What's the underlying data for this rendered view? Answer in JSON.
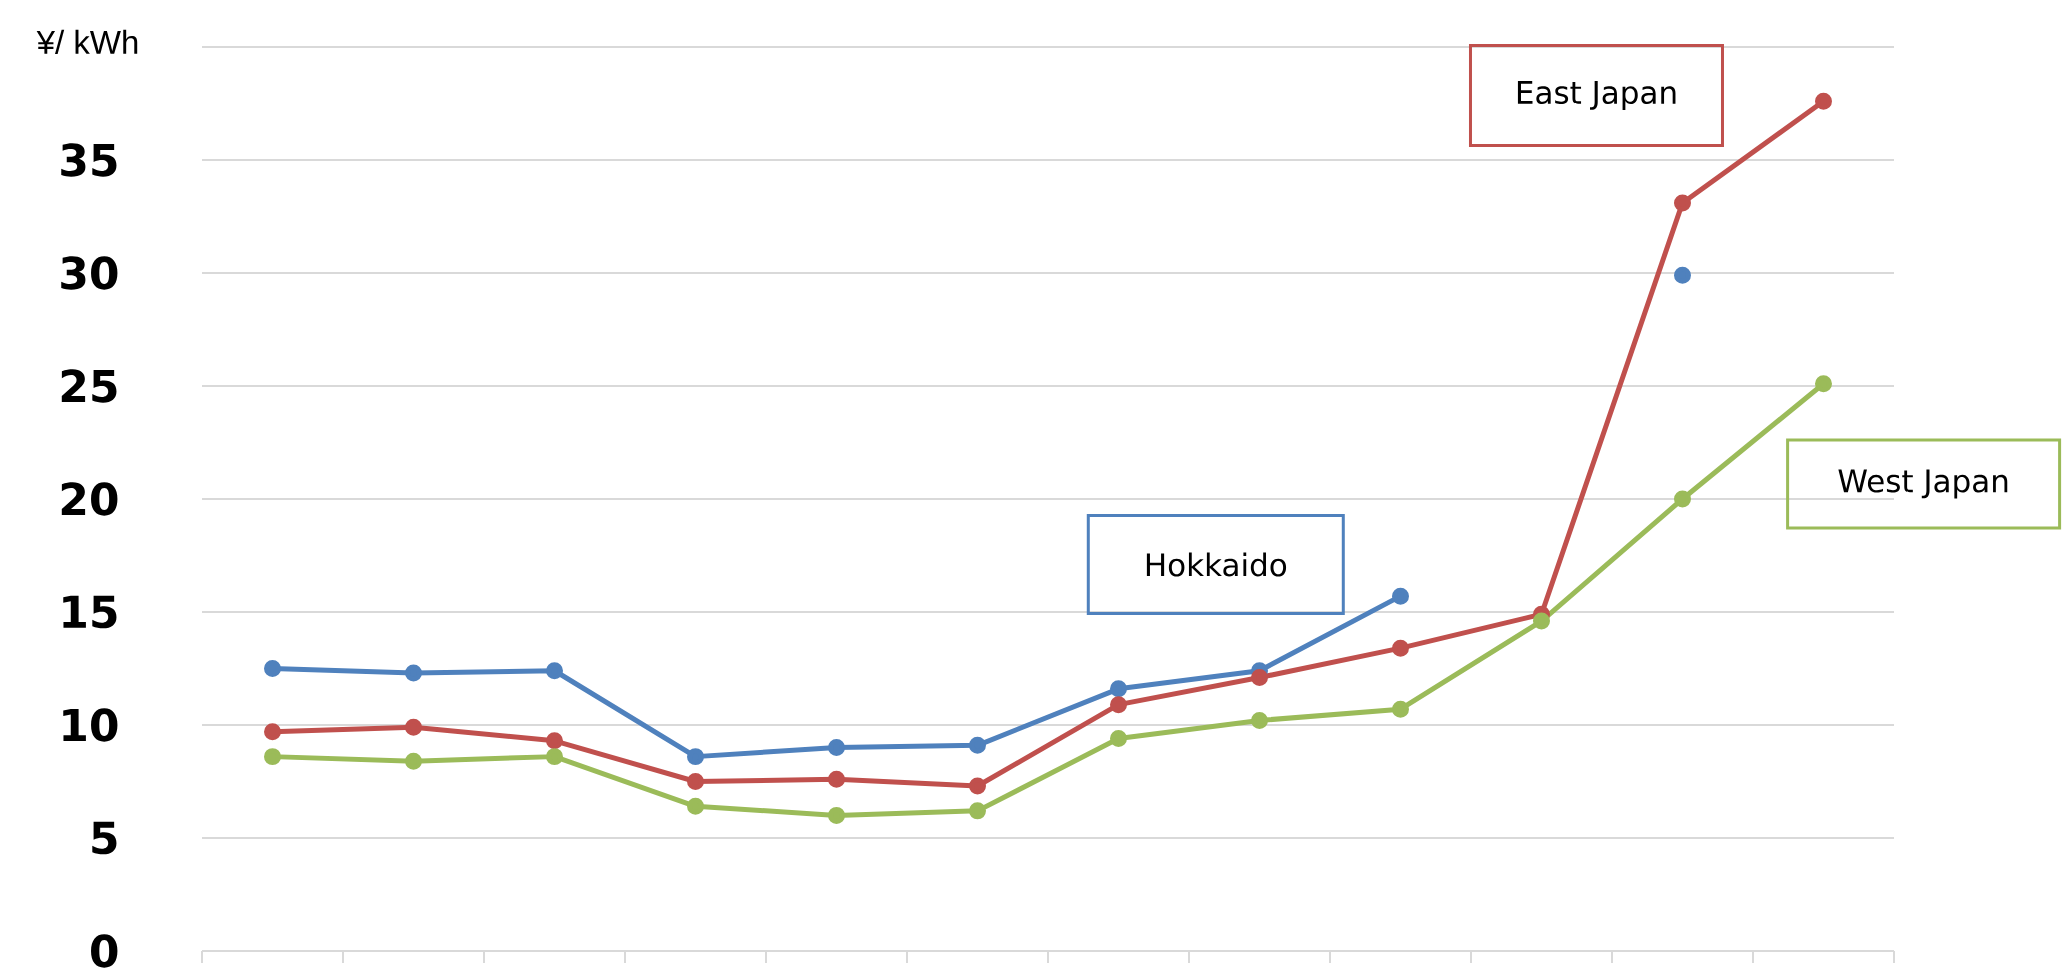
{
  "chart_data": {
    "type": "line",
    "ylabel": "¥/ kWh",
    "categories": [
      null,
      null,
      null,
      null,
      null,
      null,
      null,
      null,
      null,
      null,
      null,
      null
    ],
    "series": [
      {
        "name": "Hokkaido",
        "color": "#4f81bd",
        "values": [
          12.5,
          12.3,
          12.4,
          8.6,
          9.0,
          9.1,
          11.6,
          12.4,
          15.7,
          null,
          29.9,
          null
        ]
      },
      {
        "name": "East Japan",
        "color": "#c0504d",
        "values": [
          9.7,
          9.9,
          9.3,
          7.5,
          7.6,
          7.3,
          10.9,
          12.1,
          13.4,
          14.9,
          33.1,
          37.6
        ]
      },
      {
        "name": "West Japan",
        "color": "#9bbb59",
        "values": [
          8.6,
          8.4,
          8.6,
          6.4,
          6.0,
          6.2,
          9.4,
          10.2,
          10.7,
          14.6,
          20.0,
          25.1
        ]
      }
    ],
    "ylim": [
      0,
      40
    ],
    "yticks": [
      0,
      5,
      10,
      15,
      20,
      25,
      30,
      35,
      {
        "value": 40,
        "label": null
      }
    ],
    "grid": "y",
    "marker": "circle",
    "line_style": "solid",
    "tick_labels": "y"
  }
}
